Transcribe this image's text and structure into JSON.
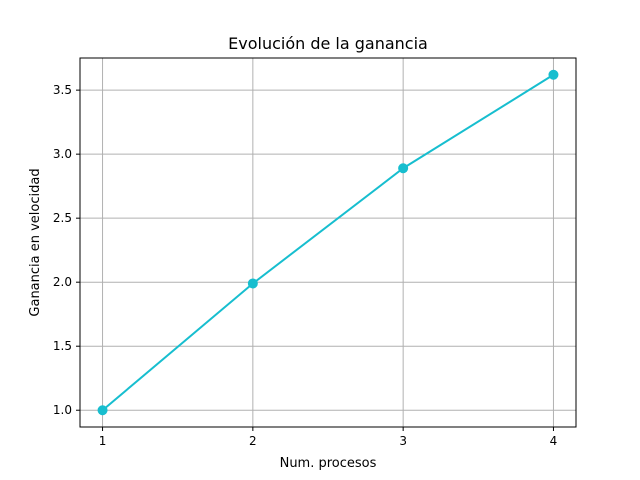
{
  "chart_data": {
    "type": "line",
    "title": "Evolución de la ganancia",
    "xlabel": "Num. procesos",
    "ylabel": "Ganancia en velocidad",
    "x": [
      1,
      2,
      3,
      4
    ],
    "series": [
      {
        "values": [
          1.0,
          1.99,
          2.89,
          3.62
        ],
        "color": "#17becf",
        "marker": "circle"
      }
    ],
    "xticks": [
      "1",
      "2",
      "3",
      "4"
    ],
    "yticks": [
      "1.0",
      "1.5",
      "2.0",
      "2.5",
      "3.0",
      "3.5"
    ],
    "xlim": [
      0.85,
      4.15
    ],
    "ylim": [
      0.869,
      3.751
    ],
    "grid": true
  }
}
